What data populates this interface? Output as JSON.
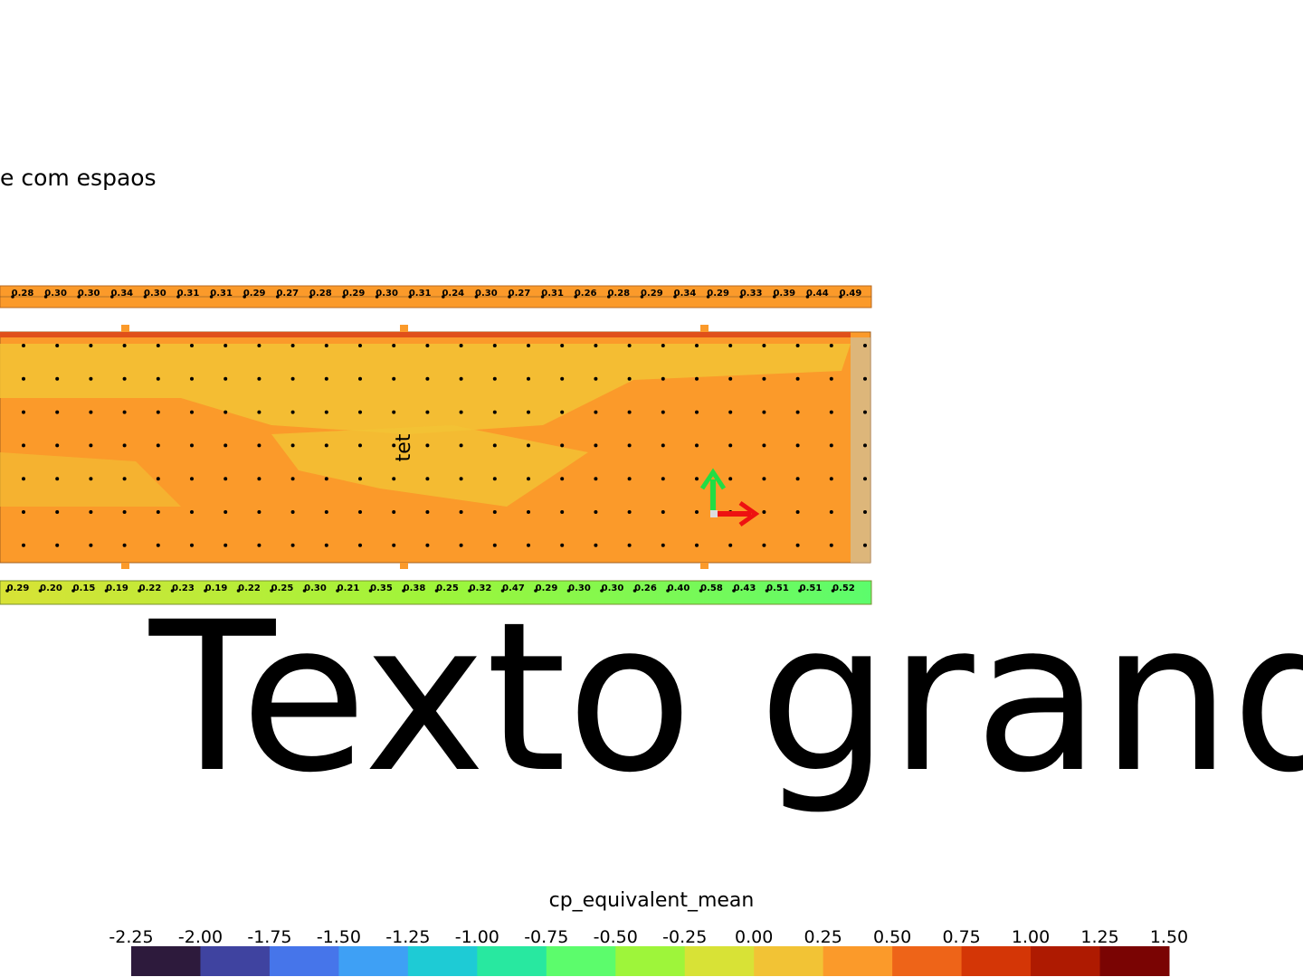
{
  "caption_small": "e com espaos",
  "caption_large": "Texto grand",
  "vertical_label": "tet",
  "top_strip": [
    "0.28",
    "0.30",
    "0.30",
    "0.34",
    "0.30",
    "0.31",
    "0.31",
    "0.29",
    "0.27",
    "0.28",
    "0.29",
    "0.30",
    "0.31",
    "0.24",
    "0.30",
    "0.27",
    "0.31",
    "0.26",
    "0.28",
    "0.29",
    "0.34",
    "0.29",
    "0.33",
    "0.39",
    "0.44",
    "0.49"
  ],
  "bottom_strip": [
    "0.29",
    "0.20",
    "0.15",
    "0.19",
    "0.22",
    "0.23",
    "0.19",
    "0.22",
    "0.25",
    "0.30",
    "0.21",
    "0.35",
    "0.38",
    "0.25",
    "0.32",
    "0.47",
    "0.29",
    "0.30",
    "0.30",
    "0.26",
    "0.40",
    "0.58",
    "0.43",
    "0.51",
    "0.51",
    "0.52"
  ],
  "colorbar": {
    "title": "cp_equivalent_mean",
    "ticks": [
      -2.25,
      {
        "value": -2,
        "label": "-2.00"
      },
      -1.75,
      {
        "value": -1.5,
        "label": "-1.50"
      },
      -1.25,
      {
        "value": -1,
        "label": "-1.00"
      },
      -0.75,
      {
        "value": -0.5,
        "label": "-0.50"
      },
      -0.25,
      {
        "value": 0,
        "label": "0.00"
      },
      0.25,
      {
        "value": 0.5,
        "label": "0.50"
      },
      0.75,
      {
        "value": 1,
        "label": "1.00"
      },
      1.25,
      {
        "value": 1.5,
        "label": "1.50"
      }
    ],
    "colors": [
      "#2d1a3c",
      "#3f43a0",
      "#4675ea",
      "#3ea0f5",
      "#1ecbd5",
      "#28e8a0",
      "#5cfc6c",
      "#9ef53a",
      "#d8e236",
      "#f2c335",
      "#fb9a2a",
      "#ee6418",
      "#d43606",
      "#ae1a01",
      "#7a0403"
    ]
  }
}
